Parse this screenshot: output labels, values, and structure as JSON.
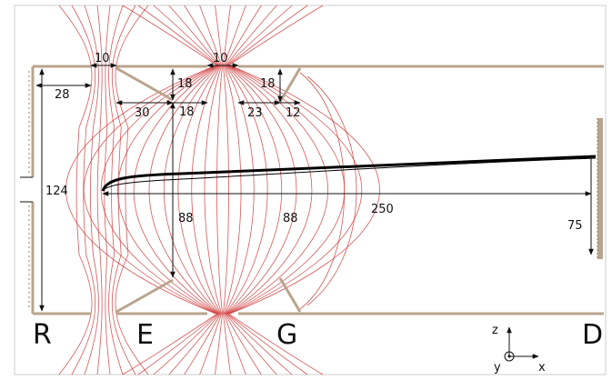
{
  "dimensions": {
    "d10_left": "10",
    "d10_gate": "10",
    "d28": "28",
    "d18_a": "18",
    "d18_b": "18",
    "d18_c": "18",
    "d30": "30",
    "d23": "23",
    "d12": "12",
    "d124": "124",
    "d88_a": "88",
    "d88_b": "88",
    "d250": "250",
    "d75": "75"
  },
  "regions": {
    "repeller": "R",
    "extractor": "E",
    "gate": "G",
    "detector": "D"
  },
  "axes": {
    "z": "z",
    "y": "y",
    "x": "x"
  },
  "colors": {
    "field_lines": "#d13a3a",
    "electrodes": "#b8a58e",
    "trajectory": "#000000"
  }
}
